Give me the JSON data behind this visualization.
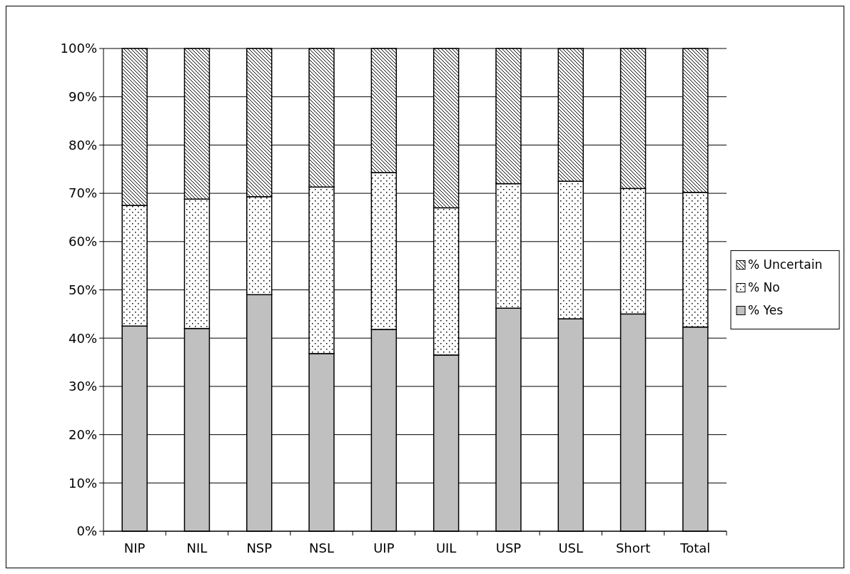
{
  "chart_data": {
    "type": "bar",
    "stacked": true,
    "categories": [
      "NIP",
      "NIL",
      "NSP",
      "NSL",
      "UIP",
      "UIL",
      "USP",
      "USL",
      "Short",
      "Total"
    ],
    "series": [
      {
        "name": "% Yes",
        "color": "#c0c0c0",
        "values": [
          42.5,
          42,
          49,
          36.8,
          41.8,
          36.5,
          46.2,
          44,
          45,
          42.3
        ]
      },
      {
        "name": "% No",
        "color": "#ffffff",
        "values": [
          25,
          26.8,
          20.3,
          34.5,
          32.5,
          30.5,
          25.8,
          28.5,
          26,
          27.9
        ]
      },
      {
        "name": "% Uncertain",
        "color": "#ffffff",
        "values": [
          32.5,
          31.2,
          30.7,
          28.7,
          25.7,
          33,
          28,
          27.5,
          29,
          29.8
        ]
      }
    ],
    "ylim": [
      0,
      100
    ],
    "yticks": [
      {
        "value": 0,
        "label": "0%"
      },
      {
        "value": 10,
        "label": "10%"
      },
      {
        "value": 20,
        "label": "20%"
      },
      {
        "value": 30,
        "label": "30%"
      },
      {
        "value": 40,
        "label": "40%"
      },
      {
        "value": 50,
        "label": "50%"
      },
      {
        "value": 60,
        "label": "60%"
      },
      {
        "value": 70,
        "label": "70%"
      },
      {
        "value": 80,
        "label": "80%"
      },
      {
        "value": 90,
        "label": "90%"
      },
      {
        "value": 100,
        "label": "100%"
      }
    ],
    "grid": "y",
    "legend": "right"
  }
}
